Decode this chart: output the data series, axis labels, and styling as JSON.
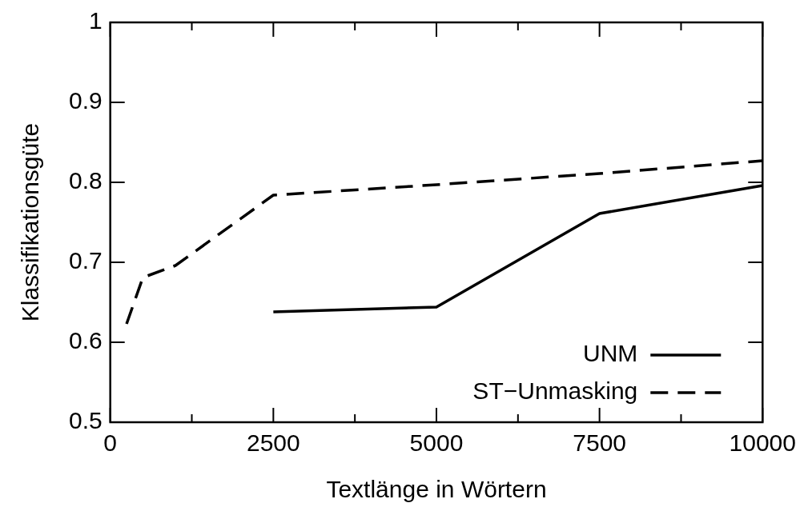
{
  "chart_data": {
    "type": "line",
    "xlabel": "Textlänge in Wörtern",
    "ylabel": "Klassifikationsgüte",
    "xlim": [
      0,
      10000
    ],
    "xticks": [
      0,
      {
        "value": 1250,
        "label": null
      },
      2500,
      {
        "value": 3750,
        "label": null
      },
      5000,
      {
        "value": 6250,
        "label": null
      },
      7500,
      {
        "value": 8750,
        "label": null
      },
      10000
    ],
    "ylim": [
      0.5,
      1
    ],
    "yticks": [
      0.5,
      0.6,
      0.7,
      0.8,
      0.9,
      1
    ],
    "grid": false,
    "legend": "bottom right",
    "marker": "none",
    "series": [
      {
        "name": "UNM",
        "color": "#000000",
        "line_style": "solid",
        "x": [
          2500,
          5000,
          7500,
          10000
        ],
        "values": [
          0.638,
          0.644,
          0.761,
          0.796
        ]
      },
      {
        "name": "ST−Unmasking",
        "color": "#000000",
        "line_style": "dashed",
        "x": [
          250,
          500,
          1000,
          2500,
          5000,
          7500,
          10000
        ],
        "values": [
          0.623,
          0.681,
          0.696,
          0.784,
          0.797,
          0.811,
          0.827
        ]
      }
    ]
  }
}
